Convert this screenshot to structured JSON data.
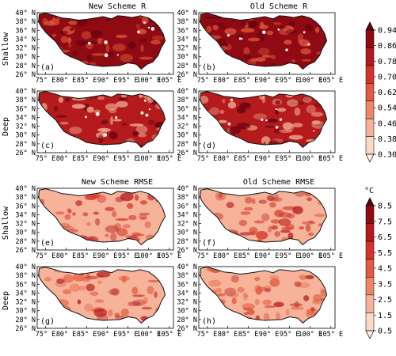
{
  "column_titles": {
    "top_left": "New Scheme R",
    "top_right": "Old Scheme R",
    "bottom_left": "New Scheme RMSE",
    "bottom_right": "Old Scheme RMSE"
  },
  "row_labels": {
    "shallow": "Shallow",
    "deep": "Deep"
  },
  "panel_labels": [
    "(a)",
    "(b)",
    "(c)",
    "(d)",
    "(e)",
    "(f)",
    "(g)",
    "(h)"
  ],
  "x_ticks": [
    "75° E",
    "80° E",
    "85° E",
    "90° E",
    "95° E",
    "100° E",
    "105° E"
  ],
  "y_ticks": [
    "26° N",
    "28° N",
    "30° N",
    "32° N",
    "34° N",
    "36° N",
    "38° N",
    "40° N"
  ],
  "colorbar_r": {
    "labels": [
      "0.94",
      "0.86",
      "0.78",
      "0.70",
      "0.62",
      "0.54",
      "0.46",
      "0.38",
      "0.30"
    ],
    "colors": [
      "#5e0011",
      "#8f0a12",
      "#b51a1c",
      "#d23527",
      "#e25a3f",
      "#ee8568",
      "#f6b39a",
      "#fbd9c8",
      "#fdf1ea"
    ]
  },
  "colorbar_rmse": {
    "unit": "°C",
    "labels": [
      "8.5",
      "7.5",
      "6.5",
      "5.5",
      "4.5",
      "3.5",
      "2.5",
      "1.5",
      "0.5"
    ],
    "colors": [
      "#5e0011",
      "#8f0a12",
      "#b51a1c",
      "#d23527",
      "#e25a3f",
      "#ee8568",
      "#f6b39a",
      "#fbd9c8",
      "#fdf1ea"
    ]
  },
  "panels": [
    {
      "id": "a",
      "metric": "R",
      "scheme": "New",
      "layer": "Shallow",
      "fill": "#8f0a12",
      "dots": "#e25a3f"
    },
    {
      "id": "b",
      "metric": "R",
      "scheme": "Old",
      "layer": "Shallow",
      "fill": "#8f0a12",
      "dots": "#e25a3f"
    },
    {
      "id": "c",
      "metric": "R",
      "scheme": "New",
      "layer": "Deep",
      "fill": "#b51a1c",
      "dots": "#f6b39a"
    },
    {
      "id": "d",
      "metric": "R",
      "scheme": "Old",
      "layer": "Deep",
      "fill": "#b51a1c",
      "dots": "#f6b39a"
    },
    {
      "id": "e",
      "metric": "RMSE",
      "scheme": "New",
      "layer": "Shallow",
      "fill": "#f6b39a",
      "dots": "#d23527"
    },
    {
      "id": "f",
      "metric": "RMSE",
      "scheme": "Old",
      "layer": "Shallow",
      "fill": "#f6b39a",
      "dots": "#d23527"
    },
    {
      "id": "g",
      "metric": "RMSE",
      "scheme": "New",
      "layer": "Deep",
      "fill": "#f6b39a",
      "dots": "#e25a3f"
    },
    {
      "id": "h",
      "metric": "RMSE",
      "scheme": "Old",
      "layer": "Deep",
      "fill": "#f6b39a",
      "dots": "#e25a3f"
    }
  ]
}
